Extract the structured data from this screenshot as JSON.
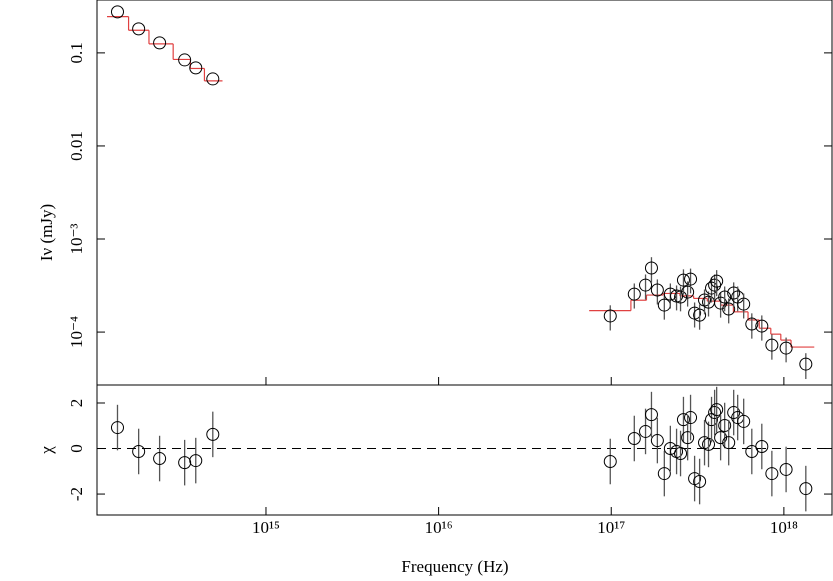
{
  "chart_data": [
    {
      "type": "scatter",
      "ylabel": "Iν (mJy)",
      "xscale": "log",
      "yscale": "log",
      "xlim": [
        105000000000000.0,
        1.9e+18
      ],
      "ylim": [
        2.7e-05,
        0.37
      ],
      "yticks": [
        0.1,
        0.01,
        {
          "value": 0.001,
          "label": "10⁻³"
        },
        {
          "value": 0.0001,
          "label": "10⁻⁴"
        }
      ],
      "series": [
        {
          "color": "#000000",
          "x": [
            138000000000000.0,
            183000000000000.0,
            242000000000000.0,
            338000000000000.0,
            392000000000000.0,
            492000000000000.0
          ],
          "values": [
            0.276,
            0.181,
            0.128,
            0.084,
            0.069,
            0.0525
          ]
        },
        {
          "color": "#000000",
          "err_color": "#555555",
          "x": [
            9.87e+16,
            1.36e+17,
            1.58e+17,
            1.71e+17,
            1.85e+17,
            2.03e+17,
            2.2e+17,
            2.39e+17,
            2.52e+17,
            2.62e+17,
            2.77e+17,
            2.88e+17,
            3.04e+17,
            3.25e+17,
            3.47e+17,
            3.66e+17,
            3.81e+17,
            3.97e+17,
            4.08e+17,
            4.3e+17,
            4.54e+17,
            4.79e+17,
            5.12e+17,
            5.4e+17,
            5.85e+17,
            6.52e+17,
            7.45e+17,
            8.52e+17,
            1.03e+18,
            1.34e+18
          ],
          "values": [
            0.000149,
            0.000256,
            0.00032,
            0.000488,
            0.000283,
            0.000195,
            0.000256,
            0.000244,
            0.000238,
            0.000362,
            0.000269,
            0.000371,
            0.00016,
            0.000152,
            0.000221,
            0.00021,
            0.000297,
            0.00032,
            0.000353,
            0.000205,
            0.000238,
            0.000177,
            0.000263,
            0.000238,
            0.0002,
            0.000122,
            0.000116,
            7.25e-05,
            6.73e-05,
            4.53e-05
          ],
          "yerr": [
            4.5e-05,
            7.7e-05,
            9.6e-05,
            0.00015,
            8.5e-05,
            5.9e-05,
            7.7e-05,
            7.3e-05,
            7.1e-05,
            0.00011,
            8.1e-05,
            0.00011,
            4.8e-05,
            4.6e-05,
            6.6e-05,
            6.3e-05,
            8.9e-05,
            9.6e-05,
            0.00011,
            6.2e-05,
            7.1e-05,
            5.3e-05,
            7.9e-05,
            7.1e-05,
            6e-05,
            3.7e-05,
            3.5e-05,
            2.2e-05,
            2e-05,
            1.4e-05
          ]
        }
      ],
      "model": [
        {
          "color": "#e04040",
          "bins": [
            120000000000000.0,
            160000000000000.0,
            210000000000000.0,
            290000000000000.0,
            365000000000000.0,
            440000000000000.0,
            560000000000000.0
          ],
          "values": [
            0.245,
            0.175,
            0.125,
            0.085,
            0.068,
            0.05
          ]
        },
        {
          "color": "#e04040",
          "bins": [
            7.45e+16,
            1e+17,
            1.3e+17,
            1.6e+17,
            2e+17,
            2.5e+17,
            3e+17,
            3.6e+17,
            4.3e+17,
            5.1e+17,
            6.2e+17,
            7.2e+17,
            8.4e+17,
            9.6e+17,
            1.1e+18,
            1.5e+18
          ],
          "values": [
            0.00017,
            0.00017,
            0.00022,
            0.00025,
            0.00026,
            0.000245,
            0.00023,
            0.000215,
            0.000195,
            0.000165,
            0.000135,
            0.00011,
            9.5e-05,
            8.2e-05,
            6.9e-05
          ]
        }
      ]
    },
    {
      "type": "scatter",
      "ylabel": "χ",
      "xlabel": "Frequency (Hz)",
      "xscale": "log",
      "xlim": [
        105000000000000.0,
        1.9e+18
      ],
      "ylim": [
        -2.92,
        2.79
      ],
      "xticks": [
        {
          "value": 1000000000000000.0,
          "label": "10¹⁵"
        },
        {
          "value": 1e+16,
          "label": "10¹⁶"
        },
        {
          "value": 1e+17,
          "label": "10¹⁷"
        },
        {
          "value": 1e+18,
          "label": "10¹⁸"
        }
      ],
      "yticks": [
        -2,
        0,
        2
      ],
      "hline": 0,
      "series": [
        {
          "color": "#000000",
          "err_color": "#555555",
          "x": [
            138000000000000.0,
            183000000000000.0,
            242000000000000.0,
            338000000000000.0,
            392000000000000.0,
            492000000000000.0,
            9.87e+16,
            1.36e+17,
            1.58e+17,
            1.71e+17,
            1.85e+17,
            2.03e+17,
            2.2e+17,
            2.39e+17,
            2.52e+17,
            2.62e+17,
            2.77e+17,
            2.88e+17,
            3.04e+17,
            3.25e+17,
            3.47e+17,
            3.66e+17,
            3.81e+17,
            3.97e+17,
            4.08e+17,
            4.3e+17,
            4.54e+17,
            4.79e+17,
            5.12e+17,
            5.4e+17,
            5.85e+17,
            6.52e+17,
            7.45e+17,
            8.52e+17,
            1.03e+18,
            1.34e+18
          ],
          "values": [
            0.92,
            -0.13,
            -0.44,
            -0.62,
            -0.53,
            0.62,
            -0.57,
            0.44,
            0.75,
            1.49,
            0.35,
            -1.1,
            0,
            -0.13,
            -0.22,
            1.27,
            0.48,
            1.36,
            -1.32,
            -1.45,
            0.26,
            0.18,
            1.27,
            1.58,
            1.71,
            0.48,
            1.01,
            0.26,
            1.58,
            1.36,
            1.19,
            -0.13,
            0.09,
            -1.1,
            -0.92,
            -1.76
          ],
          "yerr": [
            1,
            1,
            1,
            1,
            1,
            1,
            1,
            1,
            1,
            1,
            1,
            1,
            1,
            1,
            1,
            1,
            1,
            1,
            1,
            1,
            1,
            1,
            1,
            1,
            1,
            1,
            1,
            1,
            1,
            1,
            1,
            1,
            1,
            1,
            1,
            1
          ]
        }
      ]
    }
  ]
}
